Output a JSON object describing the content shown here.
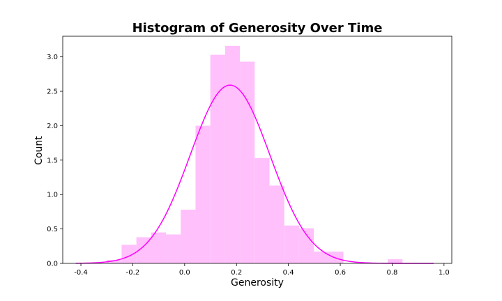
{
  "chart_data": {
    "type": "histogram",
    "title": "Histogram of Generosity Over Time",
    "xlabel": "Generosity",
    "ylabel": "Count",
    "xlim": [
      -0.47,
      1.03
    ],
    "ylim": [
      0,
      3.3
    ],
    "xticks": [
      -0.4,
      -0.2,
      0.0,
      0.2,
      0.4,
      0.6,
      0.8,
      1.0
    ],
    "xtick_labels": [
      "-0.4",
      "-0.2",
      "0.0",
      "0.2",
      "0.4",
      "0.6",
      "0.8",
      "1.0"
    ],
    "yticks": [
      0.0,
      0.5,
      1.0,
      1.5,
      2.0,
      2.5,
      3.0
    ],
    "ytick_labels": [
      "0.0",
      "0.5",
      "1.0",
      "1.5",
      "2.0",
      "2.5",
      "3.0"
    ],
    "grid": false,
    "bar_color": "#ffc0fb",
    "curve_color": "#ff00ff",
    "bins": [
      {
        "left": -0.3,
        "right": -0.243,
        "value": 0.05
      },
      {
        "left": -0.243,
        "right": -0.186,
        "value": 0.27
      },
      {
        "left": -0.186,
        "right": -0.129,
        "value": 0.38
      },
      {
        "left": -0.129,
        "right": -0.072,
        "value": 0.45
      },
      {
        "left": -0.072,
        "right": -0.015,
        "value": 0.42
      },
      {
        "left": -0.015,
        "right": 0.042,
        "value": 0.78
      },
      {
        "left": 0.042,
        "right": 0.099,
        "value": 2.0
      },
      {
        "left": 0.099,
        "right": 0.156,
        "value": 3.03
      },
      {
        "left": 0.156,
        "right": 0.213,
        "value": 3.16
      },
      {
        "left": 0.213,
        "right": 0.27,
        "value": 2.93
      },
      {
        "left": 0.27,
        "right": 0.327,
        "value": 1.53
      },
      {
        "left": 0.327,
        "right": 0.384,
        "value": 1.13
      },
      {
        "left": 0.384,
        "right": 0.441,
        "value": 0.55
      },
      {
        "left": 0.441,
        "right": 0.498,
        "value": 0.51
      },
      {
        "left": 0.498,
        "right": 0.555,
        "value": 0.17
      },
      {
        "left": 0.555,
        "right": 0.612,
        "value": 0.17
      },
      {
        "left": 0.612,
        "right": 0.669,
        "value": 0.0
      },
      {
        "left": 0.669,
        "right": 0.726,
        "value": 0.0
      },
      {
        "left": 0.726,
        "right": 0.783,
        "value": 0.0
      },
      {
        "left": 0.783,
        "right": 0.84,
        "value": 0.06
      }
    ],
    "kde": {
      "mean": 0.175,
      "sd": 0.154,
      "peak": 2.59,
      "xmin": -0.42,
      "xmax": 0.96
    }
  }
}
